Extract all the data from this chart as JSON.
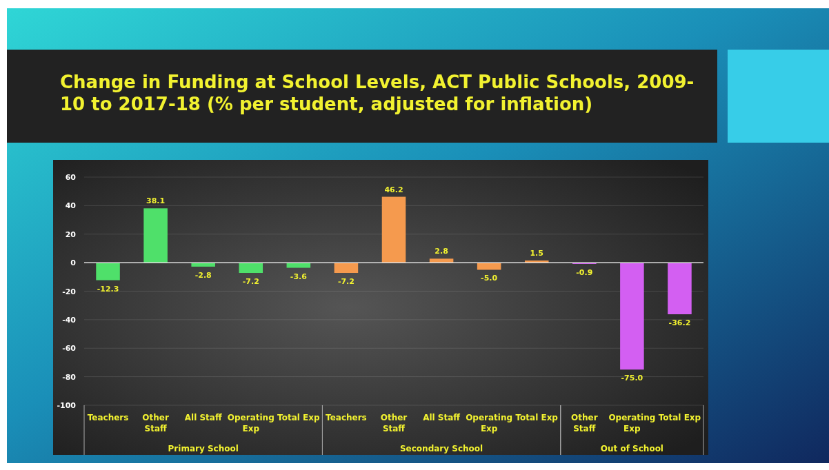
{
  "chart_data": {
    "type": "bar",
    "title": "Change in Funding at School Levels, ACT Public Schools, 2009-10 to 2017-18 (% per student, adjusted for inflation)",
    "categories": [
      "Teachers",
      "Other Staff",
      "All Staff",
      "Operating Exp",
      "Total Exp",
      "Teachers",
      "Other Staff",
      "All Staff",
      "Operating Exp",
      "Total Exp",
      "Other Staff",
      "Operating Exp",
      "Total Exp"
    ],
    "values": [
      -12.3,
      38.1,
      -2.8,
      -7.2,
      -3.6,
      -7.2,
      46.2,
      2.8,
      -5.0,
      1.5,
      -0.9,
      -75.0,
      -36.2
    ],
    "value_labels": [
      "-12.3",
      "38.1",
      "-2.8",
      "-7.2",
      "-3.6",
      "-7.2",
      "46.2",
      "2.8",
      "-5.0",
      "1.5",
      "-0.9",
      "-75.0",
      "-36.2"
    ],
    "colors": [
      "#4fe06a",
      "#4fe06a",
      "#4fe06a",
      "#4fe06a",
      "#4fe06a",
      "#f59a4e",
      "#f59a4e",
      "#f59a4e",
      "#f59a4e",
      "#f59a4e",
      "#d35ff2",
      "#d35ff2",
      "#d35ff2"
    ],
    "annotations": [
      "Primary School",
      "Secondary School",
      "Out of School"
    ],
    "ylim": [
      -100,
      60
    ],
    "yticks": [
      -100,
      -80,
      -60,
      -40,
      -20,
      0,
      20,
      40,
      60
    ],
    "grid": "y"
  }
}
